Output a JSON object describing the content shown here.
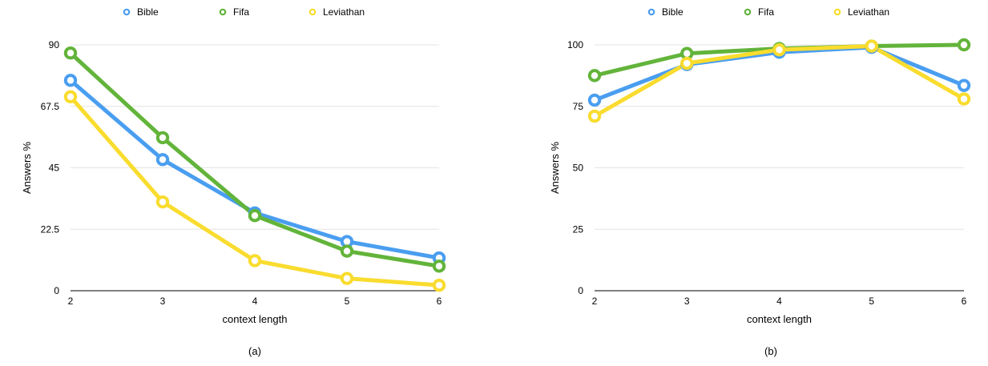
{
  "chart_data": [
    {
      "type": "line",
      "caption": "(a)",
      "xlabel": "context length",
      "ylabel": "Answers %",
      "x": [
        2,
        3,
        4,
        5,
        6
      ],
      "yticks": [
        "0",
        "22.5",
        "45",
        "67.5",
        "90"
      ],
      "ylim": [
        0,
        90
      ],
      "grid": true,
      "legend": "top-center",
      "series": [
        {
          "name": "Bible",
          "color": "#4a9ef0",
          "values": [
            77,
            48,
            28.5,
            18,
            12
          ]
        },
        {
          "name": "Fifa",
          "color": "#62b43a",
          "values": [
            87,
            56,
            27.5,
            14.5,
            9
          ]
        },
        {
          "name": "Leviathan",
          "color": "#f9dc2e",
          "values": [
            71,
            32.5,
            11,
            4.5,
            2
          ]
        }
      ]
    },
    {
      "type": "line",
      "caption": "(b)",
      "xlabel": "context length",
      "ylabel": "Answers %",
      "x": [
        2,
        3,
        4,
        5,
        6
      ],
      "yticks": [
        "0",
        "25",
        "50",
        "75",
        "100"
      ],
      "ylim": [
        0,
        100
      ],
      "grid": true,
      "legend": "top-center",
      "series": [
        {
          "name": "Bible",
          "color": "#4a9ef0",
          "values": [
            77.5,
            92,
            97,
            99,
            83.5
          ]
        },
        {
          "name": "Fifa",
          "color": "#62b43a",
          "values": [
            87.5,
            96.5,
            98.5,
            99.5,
            100
          ]
        },
        {
          "name": "Leviathan",
          "color": "#f9dc2e",
          "values": [
            71,
            92.5,
            98,
            99.5,
            78
          ]
        }
      ]
    }
  ]
}
